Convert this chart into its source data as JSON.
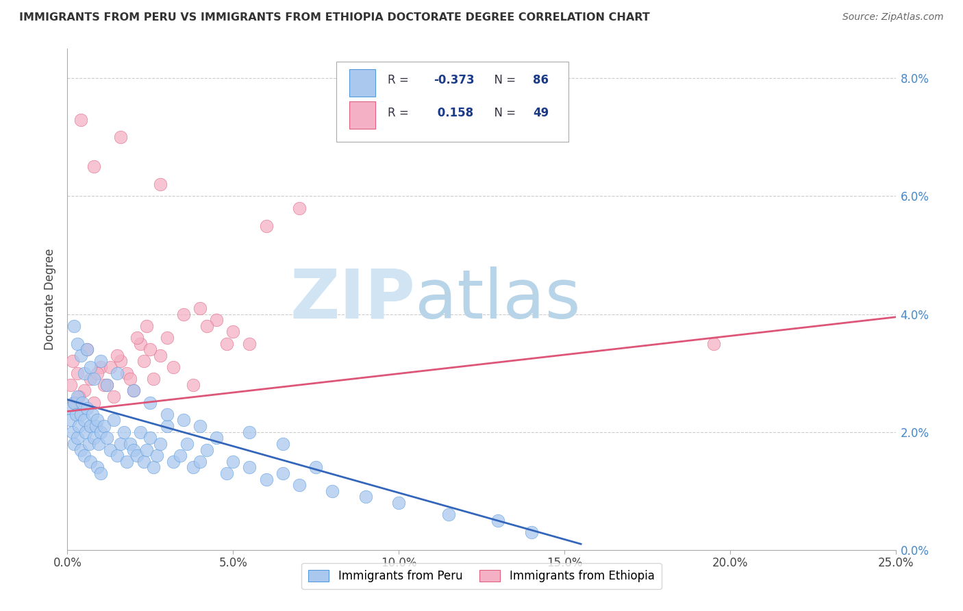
{
  "title": "IMMIGRANTS FROM PERU VS IMMIGRANTS FROM ETHIOPIA DOCTORATE DEGREE CORRELATION CHART",
  "source": "Source: ZipAtlas.com",
  "ylabel": "Doctorate Degree",
  "xlim": [
    0.0,
    25.0
  ],
  "ylim": [
    0.0,
    8.5
  ],
  "x_tick_vals": [
    0,
    5,
    10,
    15,
    20,
    25
  ],
  "y_tick_vals": [
    0,
    2,
    4,
    6,
    8
  ],
  "peru_R": -0.373,
  "peru_N": 86,
  "ethiopia_R": 0.158,
  "ethiopia_N": 49,
  "peru_color": "#aac8ee",
  "peru_edge_color": "#5599dd",
  "ethiopia_color": "#f4b0c4",
  "ethiopia_edge_color": "#e06080",
  "peru_line_color": "#3366bb",
  "ethiopia_line_color": "#dd5577",
  "legend_text_color": "#1a3a8a",
  "legend_R_label_color": "#333344",
  "right_axis_color": "#4488cc",
  "watermark_color": "#d0e4f4",
  "peru_line_x": [
    0,
    15.5
  ],
  "peru_line_y": [
    2.55,
    0.1
  ],
  "ethiopia_line_x": [
    0,
    25
  ],
  "ethiopia_line_y": [
    2.35,
    3.95
  ]
}
